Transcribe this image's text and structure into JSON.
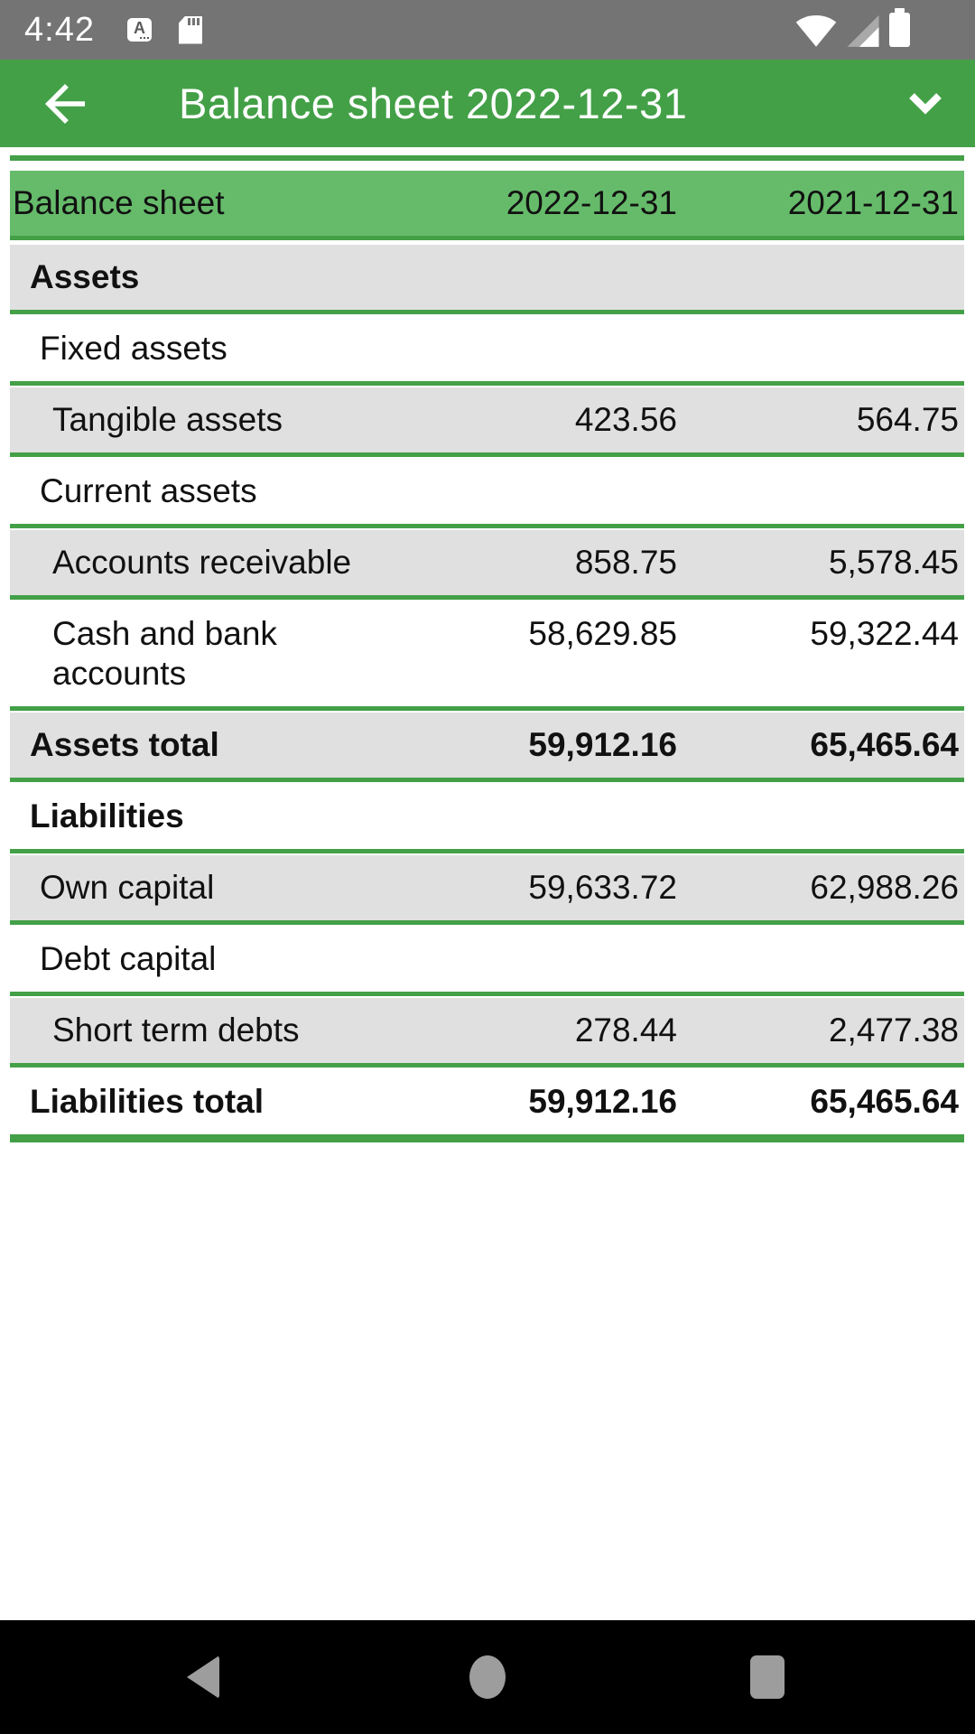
{
  "status_bar": {
    "time": "4:42",
    "left_icons": [
      "letter-a-badge",
      "sd-card"
    ],
    "right_icons": [
      "wifi-full",
      "cell-signal-partial",
      "battery-full"
    ]
  },
  "app_bar": {
    "title": "Balance sheet 2022-12-31",
    "back_icon": "arrow-left",
    "dropdown_icon": "chevron-down"
  },
  "table": {
    "header": {
      "label": "Balance sheet",
      "col_current": "2022-12-31",
      "col_previous": "2021-12-31"
    },
    "rows": [
      {
        "label": "Assets",
        "v2022": "",
        "v2021": "",
        "indent": 1,
        "bold": true,
        "shade": "gray"
      },
      {
        "label": "Fixed assets",
        "v2022": "",
        "v2021": "",
        "indent": 2,
        "bold": false,
        "shade": "white"
      },
      {
        "label": "Tangible assets",
        "v2022": "423.56",
        "v2021": "564.75",
        "indent": 3,
        "bold": false,
        "shade": "gray"
      },
      {
        "label": "Current assets",
        "v2022": "",
        "v2021": "",
        "indent": 2,
        "bold": false,
        "shade": "white"
      },
      {
        "label": "Accounts receivable",
        "v2022": "858.75",
        "v2021": "5,578.45",
        "indent": 3,
        "bold": false,
        "shade": "gray"
      },
      {
        "label": "Cash and bank accounts",
        "v2022": "58,629.85",
        "v2021": "59,322.44",
        "indent": 3,
        "bold": false,
        "shade": "white"
      },
      {
        "label": "Assets total",
        "v2022": "59,912.16",
        "v2021": "65,465.64",
        "indent": 1,
        "bold": true,
        "shade": "gray"
      },
      {
        "label": "Liabilities",
        "v2022": "",
        "v2021": "",
        "indent": 1,
        "bold": true,
        "shade": "white"
      },
      {
        "label": "Own capital",
        "v2022": "59,633.72",
        "v2021": "62,988.26",
        "indent": 2,
        "bold": false,
        "shade": "gray"
      },
      {
        "label": "Debt capital",
        "v2022": "",
        "v2021": "",
        "indent": 2,
        "bold": false,
        "shade": "white"
      },
      {
        "label": "Short term debts",
        "v2022": "278.44",
        "v2021": "2,477.38",
        "indent": 3,
        "bold": false,
        "shade": "gray"
      },
      {
        "label": "Liabilities total",
        "v2022": "59,912.16",
        "v2021": "65,465.64",
        "indent": 1,
        "bold": true,
        "shade": "white",
        "last": true
      }
    ]
  },
  "nav_bar": {
    "buttons": [
      "back",
      "home",
      "recents"
    ]
  },
  "colors": {
    "accent_green": "#43a047",
    "header_green": "#66bb6a",
    "row_gray": "#e0e0e0",
    "status_gray": "#747474",
    "nav_black": "#000000",
    "nav_icon_gray": "#9d9d9d",
    "text_black": "#111111"
  }
}
